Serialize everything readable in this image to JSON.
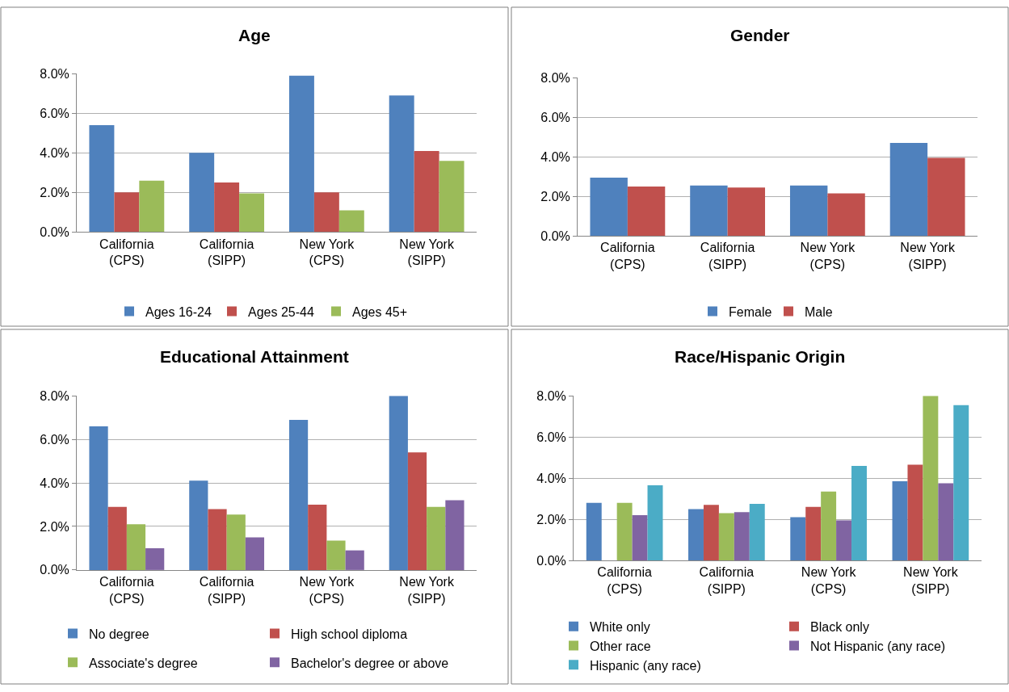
{
  "chart_data": [
    {
      "type": "bar",
      "title": "Age",
      "categories": [
        "California\n(CPS)",
        "California\n(SIPP)",
        "New York\n(CPS)",
        "New York\n(SIPP)"
      ],
      "ylim": [
        0,
        8
      ],
      "yticks": [
        {
          "value": 0,
          "label": "0.0%"
        },
        {
          "value": 2,
          "label": "2.0%"
        },
        {
          "value": 4,
          "label": "4.0%"
        },
        {
          "value": 6,
          "label": "6.0%"
        },
        {
          "value": 8,
          "label": "8.0%"
        }
      ],
      "grid": "y",
      "legend": "bottom",
      "series": [
        {
          "name": "Ages 16-24",
          "color": "#4f81bd",
          "values": [
            5.4,
            4.0,
            7.9,
            6.9
          ]
        },
        {
          "name": "Ages 25-44",
          "color": "#c0504d",
          "values": [
            2.0,
            2.5,
            2.0,
            4.1
          ]
        },
        {
          "name": "Ages 45+",
          "color": "#9bbb59",
          "values": [
            2.6,
            1.95,
            1.1,
            3.6
          ]
        }
      ]
    },
    {
      "type": "bar",
      "title": "Gender",
      "categories": [
        "California\n(CPS)",
        "California\n(SIPP)",
        "New York\n(CPS)",
        "New York\n(SIPP)"
      ],
      "ylim": [
        0,
        8
      ],
      "yticks": [
        {
          "value": 0,
          "label": "0.0%"
        },
        {
          "value": 2,
          "label": "2.0%"
        },
        {
          "value": 4,
          "label": "4.0%"
        },
        {
          "value": 6,
          "label": "6.0%"
        },
        {
          "value": 8,
          "label": "8.0%"
        }
      ],
      "grid": "y",
      "legend": "bottom",
      "series": [
        {
          "name": "Female",
          "color": "#4f81bd",
          "values": [
            2.95,
            2.55,
            2.55,
            4.7
          ]
        },
        {
          "name": "Male",
          "color": "#c0504d",
          "values": [
            2.5,
            2.45,
            2.15,
            3.95
          ]
        }
      ]
    },
    {
      "type": "bar",
      "title": "Educational Attainment",
      "categories": [
        "California\n(CPS)",
        "California\n(SIPP)",
        "New York\n(CPS)",
        "New York\n(SIPP)"
      ],
      "ylim": [
        0,
        8
      ],
      "yticks": [
        {
          "value": 0,
          "label": "0.0%"
        },
        {
          "value": 2,
          "label": "2.0%"
        },
        {
          "value": 4,
          "label": "4.0%"
        },
        {
          "value": 6,
          "label": "6.0%"
        },
        {
          "value": 8,
          "label": "8.0%"
        }
      ],
      "grid": "y",
      "legend": "bottom",
      "series": [
        {
          "name": "No degree",
          "color": "#4f81bd",
          "values": [
            6.6,
            4.1,
            6.9,
            8.0
          ]
        },
        {
          "name": "High school diploma",
          "color": "#c0504d",
          "values": [
            2.9,
            2.8,
            3.0,
            5.4
          ]
        },
        {
          "name": "Associate's degree",
          "color": "#9bbb59",
          "values": [
            2.1,
            2.55,
            1.35,
            2.9
          ]
        },
        {
          "name": "Bachelor's degree or above",
          "color": "#8064a2",
          "values": [
            1.0,
            1.5,
            0.9,
            3.2
          ]
        }
      ]
    },
    {
      "type": "bar",
      "title": "Race/Hispanic Origin",
      "categories": [
        "California\n(CPS)",
        "California\n(SIPP)",
        "New York\n(CPS)",
        "New York\n(SIPP)"
      ],
      "ylim": [
        0,
        8
      ],
      "yticks": [
        {
          "value": 0,
          "label": "0.0%"
        },
        {
          "value": 2,
          "label": "2.0%"
        },
        {
          "value": 4,
          "label": "4.0%"
        },
        {
          "value": 6,
          "label": "6.0%"
        },
        {
          "value": 8,
          "label": "8.0%"
        }
      ],
      "grid": "y",
      "legend": "bottom",
      "series": [
        {
          "name": "White only",
          "color": "#4f81bd",
          "values": [
            2.8,
            2.5,
            2.1,
            3.85
          ]
        },
        {
          "name": "Black only",
          "color": "#c0504d",
          "values": [
            0,
            2.7,
            2.6,
            4.65
          ]
        },
        {
          "name": "Other race",
          "color": "#9bbb59",
          "values": [
            2.8,
            2.3,
            3.35,
            8.0
          ]
        },
        {
          "name": "Not Hispanic (any race)",
          "color": "#8064a2",
          "values": [
            2.2,
            2.35,
            1.95,
            3.75
          ]
        },
        {
          "name": "Hispanic (any race)",
          "color": "#4bacc6",
          "values": [
            3.65,
            2.75,
            4.6,
            7.55
          ]
        }
      ]
    }
  ]
}
